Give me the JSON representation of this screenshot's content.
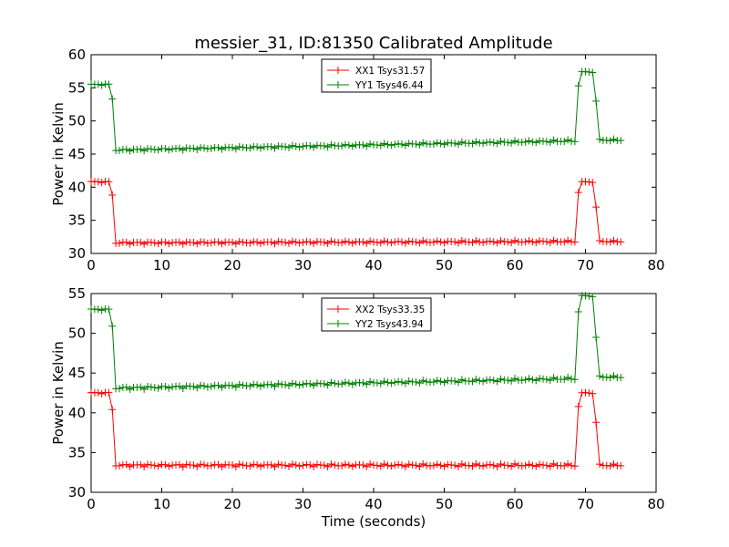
{
  "title": "messier_31, ID:81350 Calibrated Amplitude",
  "chart_data": [
    {
      "type": "line",
      "title": "messier_31, ID:81350 Calibrated Amplitude",
      "xlabel": "",
      "ylabel": "Power in Kelvin",
      "xlim": [
        0,
        80
      ],
      "ylim": [
        30,
        60
      ],
      "xticks": [
        "0",
        "10",
        "20",
        "30",
        "40",
        "50",
        "60",
        "70",
        "80"
      ],
      "yticks": [
        "30",
        "35",
        "40",
        "45",
        "50",
        "55",
        "60"
      ],
      "legend_position": "top-center",
      "grid": false,
      "marker": "+",
      "series": [
        {
          "name": "XX1 Tsys31.57",
          "color": "#ff0000",
          "profile": {
            "time_step": 0.5,
            "t_end": 75,
            "high_value": 40.8,
            "low_start": 31.6,
            "low_end": 31.8,
            "high_until": 2.5,
            "drop_points": [
              [
                3.0,
                38.8
              ]
            ],
            "low_from": 3.5,
            "low_until": 68.5,
            "rise_points": [
              [
                69.0,
                39.2
              ]
            ],
            "high2_from": 69.5,
            "high2_until": 71.0,
            "fall_points": [
              [
                71.5,
                37.0
              ]
            ],
            "tail_value": 31.8
          }
        },
        {
          "name": "YY1 Tsys46.44",
          "color": "#008000",
          "profile": {
            "time_step": 0.5,
            "t_end": 75,
            "high_value": 55.5,
            "low_start": 45.6,
            "low_end": 47.0,
            "high_until": 2.5,
            "drop_points": [
              [
                3.0,
                53.3
              ]
            ],
            "low_from": 3.5,
            "low_until": 68.5,
            "rise_points": [
              [
                69.0,
                55.3
              ]
            ],
            "high2_from": 69.5,
            "high2_until": 71.0,
            "high2_value": 57.4,
            "fall_points": [
              [
                71.5,
                53.0
              ]
            ],
            "tail_value": 47.1
          }
        }
      ]
    },
    {
      "type": "line",
      "title": "",
      "xlabel": "Time (seconds)",
      "ylabel": "Power in Kelvin",
      "xlim": [
        0,
        80
      ],
      "ylim": [
        30,
        55
      ],
      "xticks": [
        "0",
        "10",
        "20",
        "30",
        "40",
        "50",
        "60",
        "70",
        "80"
      ],
      "yticks": [
        "30",
        "35",
        "40",
        "45",
        "50",
        "55"
      ],
      "legend_position": "top-center",
      "grid": false,
      "marker": "+",
      "series": [
        {
          "name": "XX2 Tsys33.35",
          "color": "#ff0000",
          "profile": {
            "time_step": 0.5,
            "t_end": 75,
            "high_value": 42.5,
            "low_start": 33.4,
            "low_end": 33.4,
            "high_until": 2.5,
            "drop_points": [
              [
                3.0,
                40.4
              ]
            ],
            "low_from": 3.5,
            "low_until": 68.5,
            "rise_points": [
              [
                69.0,
                40.8
              ]
            ],
            "high2_from": 69.5,
            "high2_until": 71.0,
            "fall_points": [
              [
                71.5,
                38.8
              ]
            ],
            "tail_value": 33.4
          }
        },
        {
          "name": "YY2 Tsys43.94",
          "color": "#008000",
          "profile": {
            "time_step": 0.5,
            "t_end": 75,
            "high_value": 53.0,
            "low_start": 43.1,
            "low_end": 44.3,
            "high_until": 2.5,
            "drop_points": [
              [
                3.0,
                50.9
              ]
            ],
            "low_from": 3.5,
            "low_until": 68.5,
            "rise_points": [
              [
                69.0,
                52.7
              ]
            ],
            "high2_from": 69.5,
            "high2_until": 71.0,
            "high2_value": 54.7,
            "fall_points": [
              [
                71.5,
                49.5
              ]
            ],
            "tail_value": 44.5
          }
        }
      ]
    }
  ]
}
